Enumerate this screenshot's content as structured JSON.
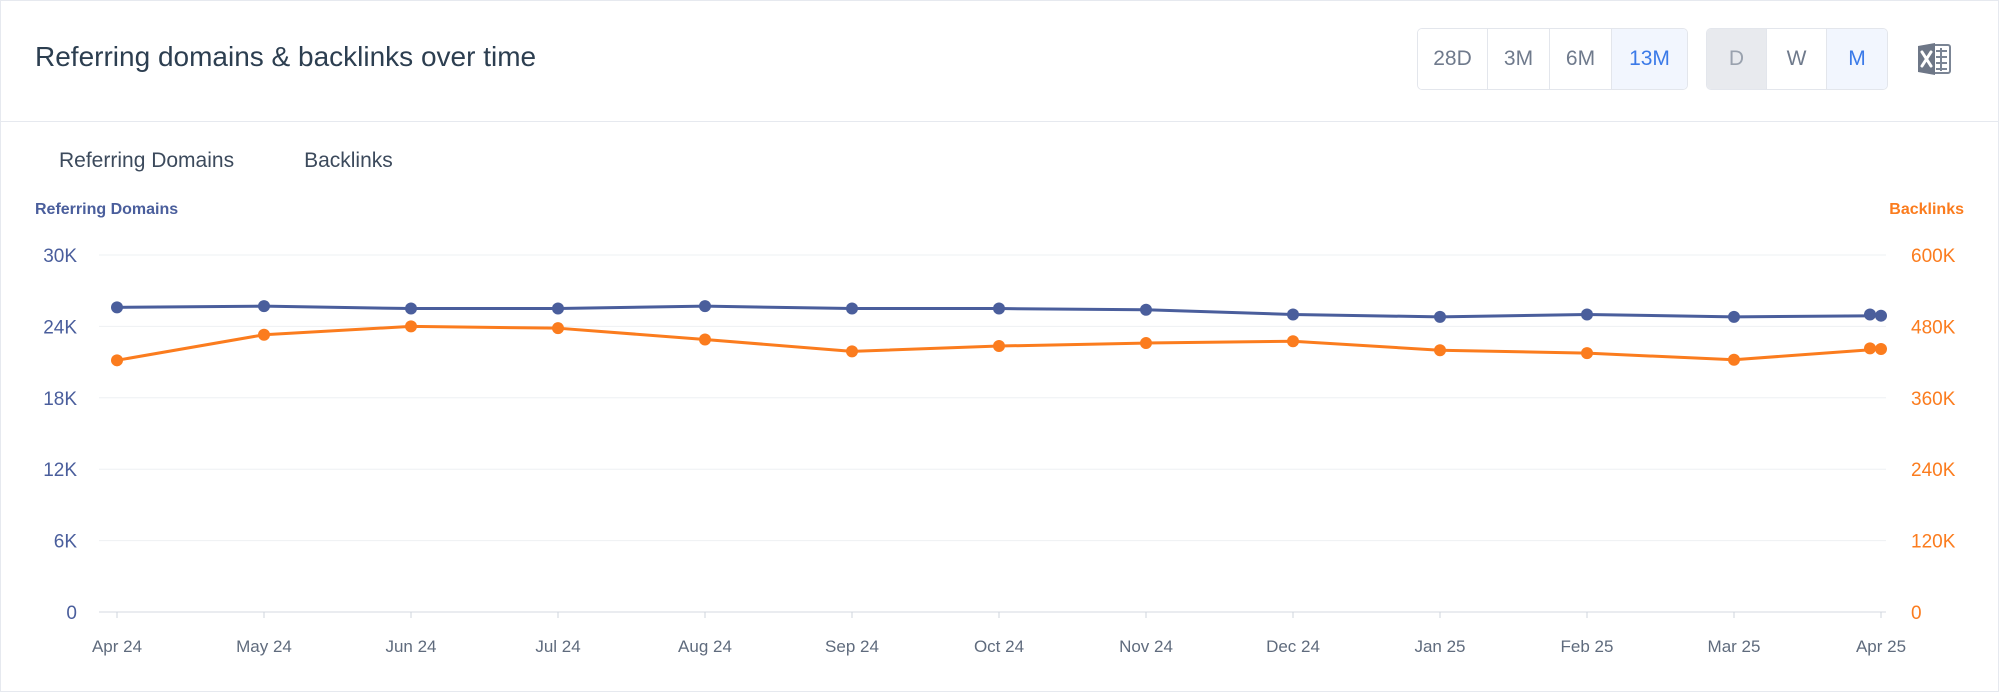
{
  "header": {
    "title": "Referring domains & backlinks over time",
    "range_buttons": [
      "28D",
      "3M",
      "6M",
      "13M"
    ],
    "range_active": "13M",
    "granularity_buttons": [
      "D",
      "W",
      "M"
    ],
    "granularity_active": "M",
    "granularity_disabled": "D",
    "export_icon": "excel-icon"
  },
  "tabs": [
    "Referring Domains",
    "Backlinks"
  ],
  "chart_data": {
    "type": "line",
    "categories": [
      "Apr 24",
      "May 24",
      "Jun 24",
      "Jul 24",
      "Aug 24",
      "Sep 24",
      "Oct 24",
      "Nov 24",
      "Dec 24",
      "Jan 25",
      "Feb 25",
      "Mar 25",
      "Apr 25"
    ],
    "y_left": {
      "label": "Referring Domains",
      "ticks": [
        "0",
        "6K",
        "12K",
        "18K",
        "24K",
        "30K"
      ],
      "range": [
        0,
        30000
      ],
      "color": "#4a5e9c"
    },
    "y_right": {
      "label": "Backlinks",
      "ticks": [
        "0",
        "120K",
        "240K",
        "360K",
        "480K",
        "600K"
      ],
      "range": [
        0,
        600000
      ],
      "color": "#fb7c1e"
    },
    "series": [
      {
        "name": "Referring Domains",
        "axis": "left",
        "color": "#4a5e9c",
        "values": [
          25600,
          25700,
          25500,
          25500,
          25700,
          25500,
          25500,
          25400,
          25000,
          24800,
          25000,
          24800,
          24900
        ],
        "projected": 25000
      },
      {
        "name": "Backlinks",
        "axis": "right",
        "color": "#fb7c1e",
        "values": [
          423000,
          466000,
          480000,
          477000,
          458000,
          438000,
          447000,
          452000,
          455000,
          440000,
          435000,
          424000,
          442000
        ],
        "projected": 443000
      }
    ],
    "grid": true,
    "legend": "none"
  }
}
